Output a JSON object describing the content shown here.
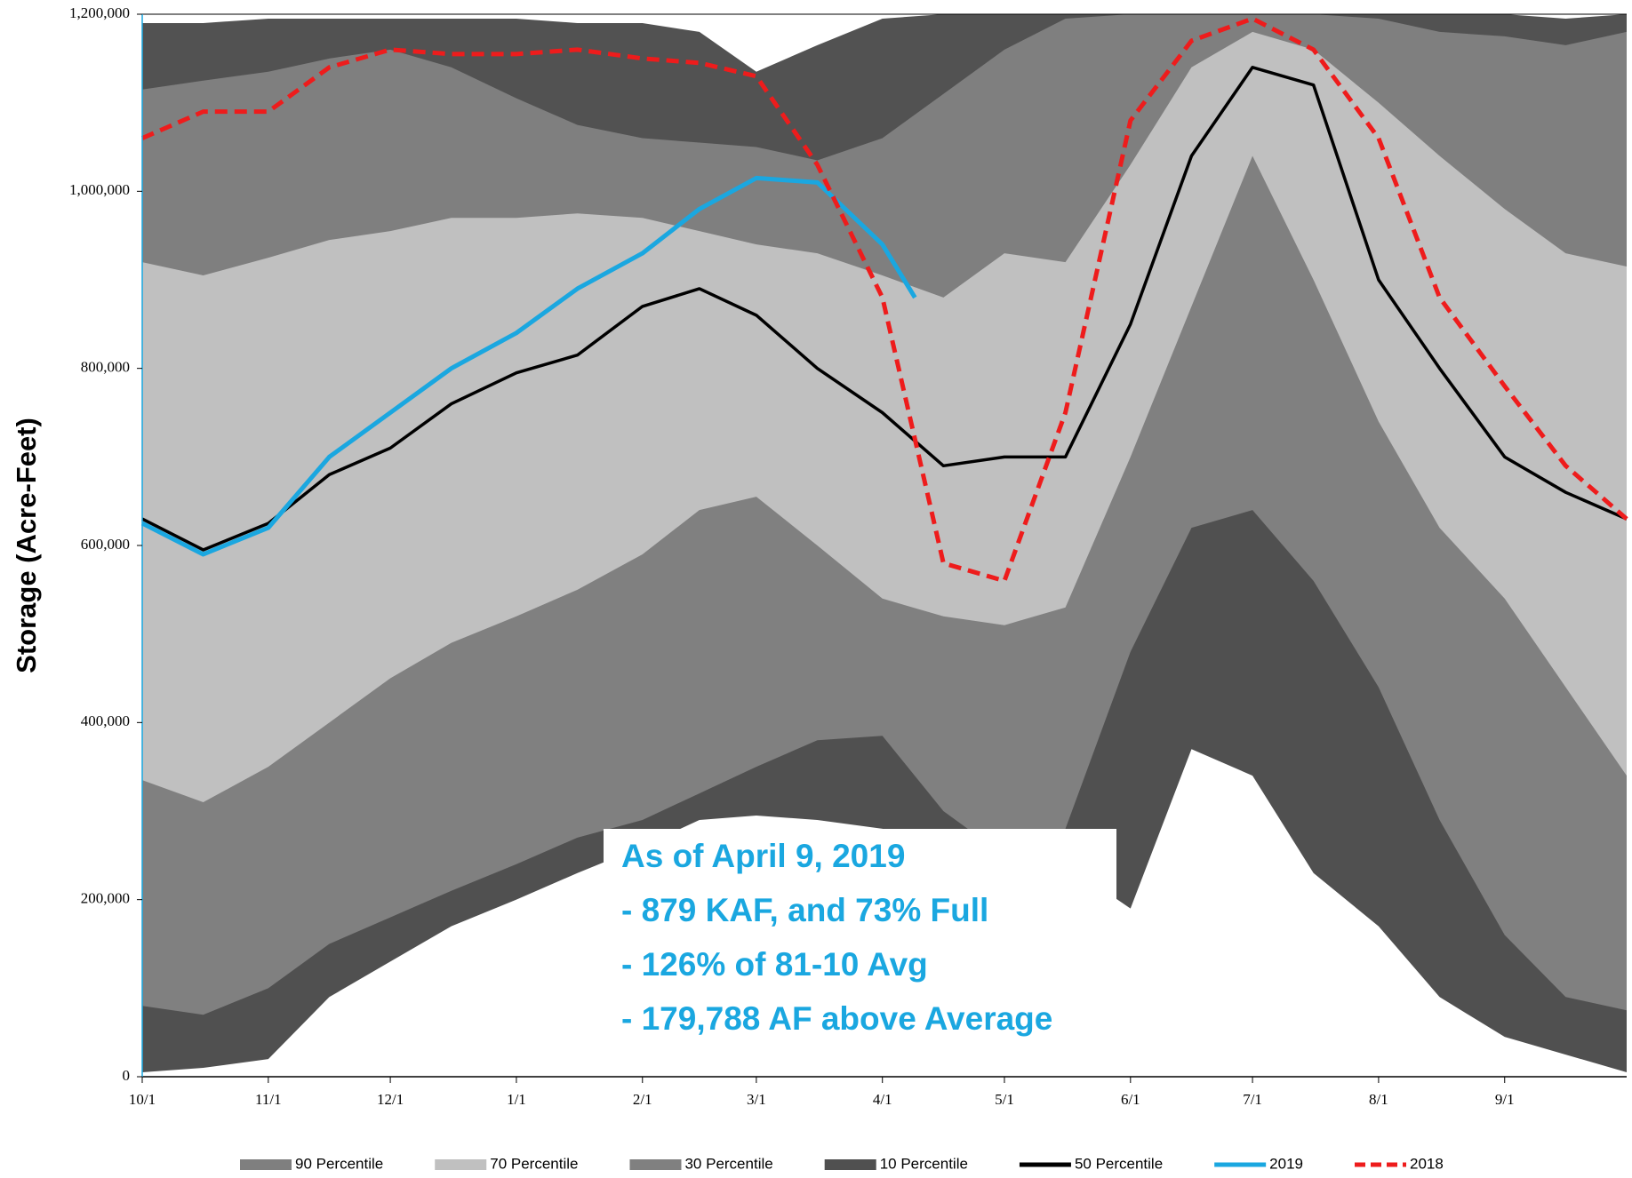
{
  "chart_data": {
    "type": "area",
    "y_label": "Storage (Acre-Feet)",
    "x": [
      0,
      15,
      31,
      46,
      61,
      76,
      92,
      107,
      123,
      137,
      151,
      166,
      182,
      197,
      212,
      227,
      243,
      258,
      273,
      288,
      304,
      319,
      335,
      350,
      365
    ],
    "xlim": [
      0,
      365
    ],
    "xticks": [
      {
        "value": 0,
        "label": "10/1"
      },
      {
        "value": 31,
        "label": "11/1"
      },
      {
        "value": 61,
        "label": "12/1"
      },
      {
        "value": 92,
        "label": "1/1"
      },
      {
        "value": 123,
        "label": "2/1"
      },
      {
        "value": 151,
        "label": "3/1"
      },
      {
        "value": 182,
        "label": "4/1"
      },
      {
        "value": 212,
        "label": "5/1"
      },
      {
        "value": 243,
        "label": "6/1"
      },
      {
        "value": 273,
        "label": "7/1"
      },
      {
        "value": 304,
        "label": "8/1"
      },
      {
        "value": 335,
        "label": "9/1"
      }
    ],
    "ylim": [
      0,
      1200000
    ],
    "yticks": [
      0,
      {
        "value": 200000,
        "label": "200,000"
      },
      {
        "value": 400000,
        "label": "400,000"
      },
      {
        "value": 600000,
        "label": "600,000"
      },
      {
        "value": 800000,
        "label": "800,000"
      },
      {
        "value": 1000000,
        "label": "1,000,000"
      },
      {
        "value": 1200000,
        "label": "1,200,000"
      }
    ],
    "series": [
      {
        "kind": "area",
        "color": "#525252",
        "values": [
          1190000,
          1190000,
          1195000,
          1195000,
          1195000,
          1195000,
          1195000,
          1190000,
          1190000,
          1180000,
          1135000,
          1165000,
          1195000,
          1200000,
          1200000,
          1200000,
          1200000,
          1200000,
          1200000,
          1200000,
          1200000,
          1200000,
          1200000,
          1195000,
          1200000
        ]
      },
      {
        "name": "90 Percentile",
        "kind": "area",
        "color": "#7f7f7f",
        "values": [
          1115000,
          1125000,
          1135000,
          1150000,
          1160000,
          1140000,
          1105000,
          1075000,
          1060000,
          1055000,
          1050000,
          1035000,
          1060000,
          1110000,
          1160000,
          1195000,
          1200000,
          1200000,
          1200000,
          1200000,
          1195000,
          1180000,
          1175000,
          1165000,
          1180000
        ]
      },
      {
        "name": "70 Percentile",
        "kind": "area",
        "color": "#c0c0c0",
        "values": [
          920000,
          905000,
          925000,
          945000,
          955000,
          970000,
          970000,
          975000,
          970000,
          955000,
          940000,
          930000,
          905000,
          880000,
          930000,
          920000,
          1030000,
          1140000,
          1180000,
          1160000,
          1100000,
          1040000,
          980000,
          930000,
          915000
        ]
      },
      {
        "name": "30 Percentile",
        "kind": "area",
        "color": "#808080",
        "values": [
          335000,
          310000,
          350000,
          400000,
          450000,
          490000,
          520000,
          550000,
          590000,
          640000,
          655000,
          600000,
          540000,
          520000,
          510000,
          530000,
          700000,
          870000,
          1040000,
          900000,
          740000,
          620000,
          540000,
          440000,
          340000
        ]
      },
      {
        "name": "10 Percentile",
        "kind": "area",
        "color": "#505050",
        "values": [
          80000,
          70000,
          100000,
          150000,
          180000,
          210000,
          240000,
          270000,
          290000,
          320000,
          350000,
          380000,
          385000,
          300000,
          250000,
          280000,
          480000,
          620000,
          640000,
          560000,
          440000,
          290000,
          160000,
          90000,
          75000
        ]
      },
      {
        "kind": "area",
        "color": "#ffffff",
        "values": [
          5000,
          10000,
          20000,
          90000,
          130000,
          170000,
          200000,
          230000,
          260000,
          290000,
          295000,
          290000,
          280000,
          260000,
          250000,
          240000,
          190000,
          370000,
          340000,
          230000,
          170000,
          90000,
          45000,
          25000,
          5000
        ]
      },
      {
        "name": "50 Percentile",
        "kind": "line",
        "color": "#000000",
        "values": [
          630000,
          595000,
          625000,
          680000,
          710000,
          760000,
          795000,
          815000,
          870000,
          890000,
          860000,
          800000,
          750000,
          690000,
          700000,
          700000,
          850000,
          1040000,
          1140000,
          1120000,
          900000,
          800000,
          700000,
          660000,
          630000
        ]
      },
      {
        "name": "2019",
        "kind": "line",
        "color": "#1aa7e0",
        "x": [
          0,
          15,
          31,
          46,
          61,
          76,
          92,
          107,
          123,
          137,
          151,
          166,
          182,
          190
        ],
        "values": [
          625000,
          590000,
          620000,
          700000,
          750000,
          800000,
          840000,
          890000,
          930000,
          980000,
          1015000,
          1010000,
          940000,
          880000
        ]
      },
      {
        "name": "2018",
        "kind": "line",
        "dash": true,
        "color": "#ee1c1c",
        "values": [
          1060000,
          1090000,
          1090000,
          1140000,
          1160000,
          1155000,
          1155000,
          1160000,
          1150000,
          1145000,
          1130000,
          1030000,
          880000,
          580000,
          560000,
          750000,
          1080000,
          1170000,
          1195000,
          1160000,
          1060000,
          880000,
          780000,
          690000,
          630000
        ]
      }
    ],
    "annotation": [
      "As of April 9, 2019",
      "- 879 KAF, and 73% Full",
      "- 126% of 81-10 Avg",
      "- 179,788 AF above Average"
    ]
  }
}
